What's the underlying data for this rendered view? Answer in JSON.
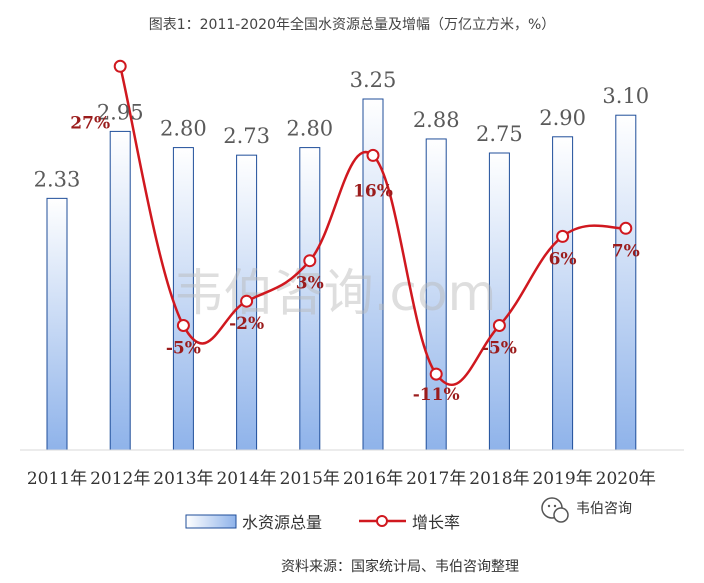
{
  "chart_data": {
    "type": "bar",
    "title": "图表1：2011-2020年全国水资源总量及增幅（万亿立方米，%）",
    "categories": [
      "2011年",
      "2012年",
      "2013年",
      "2014年",
      "2015年",
      "2016年",
      "2017年",
      "2018年",
      "2019年",
      "2020年"
    ],
    "series": [
      {
        "name": "水资源总量",
        "type": "bar",
        "values": [
          2.33,
          2.95,
          2.8,
          2.73,
          2.8,
          3.25,
          2.88,
          2.75,
          2.9,
          3.1
        ],
        "labels": [
          "2.33",
          "2.95",
          "2.80",
          "2.73",
          "2.80",
          "3.25",
          "2.88",
          "2.75",
          "2.90",
          "3.10"
        ]
      },
      {
        "name": "增长率",
        "type": "line",
        "values": [
          null,
          27,
          -5,
          -2,
          3,
          16,
          -11,
          -5,
          6,
          7
        ],
        "labels": [
          "",
          "27%",
          "-5%",
          "-2%",
          "3%",
          "16%",
          "-11%",
          "-5%",
          "6%",
          "7%"
        ]
      }
    ],
    "legend_position": "bottom",
    "grid": false
  },
  "colors": {
    "bar_fill_top": "#ffffff",
    "bar_fill_bottom": "#8fb3ea",
    "bar_stroke": "#1f4e9a",
    "line": "#d0181f",
    "rate_text": "#9b1c1c"
  },
  "watermark": "韦伯咨询.com",
  "brand": {
    "name": "韦伯咨询",
    "icon": "wechat-icon"
  },
  "source": "资料来源：国家统计局、韦伯咨询整理"
}
